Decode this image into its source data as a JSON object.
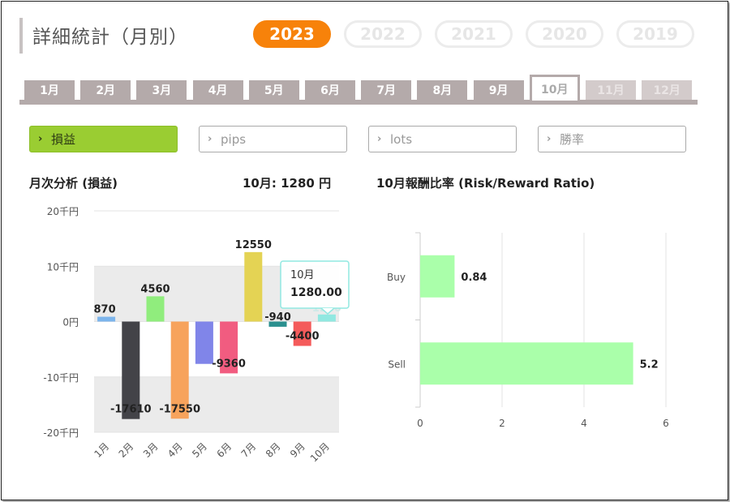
{
  "header": {
    "title": "詳細統計（月別）"
  },
  "years": [
    {
      "label": "2023",
      "active": true
    },
    {
      "label": "2022",
      "active": false
    },
    {
      "label": "2021",
      "active": false
    },
    {
      "label": "2020",
      "active": false
    },
    {
      "label": "2019",
      "active": false
    }
  ],
  "months": [
    {
      "label": "1月",
      "state": "normal"
    },
    {
      "label": "2月",
      "state": "normal"
    },
    {
      "label": "3月",
      "state": "normal"
    },
    {
      "label": "4月",
      "state": "normal"
    },
    {
      "label": "5月",
      "state": "normal"
    },
    {
      "label": "6月",
      "state": "normal"
    },
    {
      "label": "7月",
      "state": "normal"
    },
    {
      "label": "8月",
      "state": "normal"
    },
    {
      "label": "9月",
      "state": "normal"
    },
    {
      "label": "10月",
      "state": "active"
    },
    {
      "label": "11月",
      "state": "disabled"
    },
    {
      "label": "12月",
      "state": "disabled"
    }
  ],
  "metrics": [
    {
      "label": "損益",
      "active": true
    },
    {
      "label": "pips",
      "active": false
    },
    {
      "label": "lots",
      "active": false
    },
    {
      "label": "勝率",
      "active": false
    }
  ],
  "chevron_icon": "chevron-right-icon",
  "left_chart": {
    "heading": "月次分析 (損益)",
    "summary": "10月:  1280 円",
    "tooltip": {
      "title": "10月",
      "value": "1280.00"
    }
  },
  "right_chart": {
    "heading": "10月報酬比率 (Risk/Reward Ratio)"
  },
  "chart_data": [
    {
      "type": "bar",
      "title": "月次分析 (損益)",
      "categories": [
        "1月",
        "2月",
        "3月",
        "4月",
        "5月",
        "6月",
        "7月",
        "8月",
        "9月",
        "10月"
      ],
      "values": [
        870,
        -17610,
        4560,
        -17550,
        -7650,
        -9360,
        12550,
        -940,
        -4400,
        1280
      ],
      "data_labels": [
        "870",
        "-17610",
        "4560",
        "-17550",
        "",
        "-9360",
        "12550",
        "-940",
        "-4400",
        "1280"
      ],
      "colors": [
        "#7cb5ec",
        "#434348",
        "#90ed7d",
        "#f7a35c",
        "#8085e9",
        "#f15c80",
        "#e4d354",
        "#2b908f",
        "#f45b5b",
        "#91e8e1"
      ],
      "yticks": [
        20000,
        10000,
        0,
        -10000,
        -20000
      ],
      "ytick_labels": [
        "20千円",
        "10千円",
        "0円",
        "-10千円",
        "-20千円"
      ],
      "ylim": [
        -20000,
        20000
      ]
    },
    {
      "type": "bar",
      "orientation": "horizontal",
      "title": "10月報酬比率 (Risk/Reward Ratio)",
      "categories": [
        "Buy",
        "Sell"
      ],
      "values": [
        0.84,
        5.2
      ],
      "data_labels": [
        "0.84",
        "5.2"
      ],
      "color": "#aaffaa",
      "xticks": [
        0,
        2,
        4,
        6
      ],
      "xlim": [
        0,
        6
      ]
    }
  ]
}
